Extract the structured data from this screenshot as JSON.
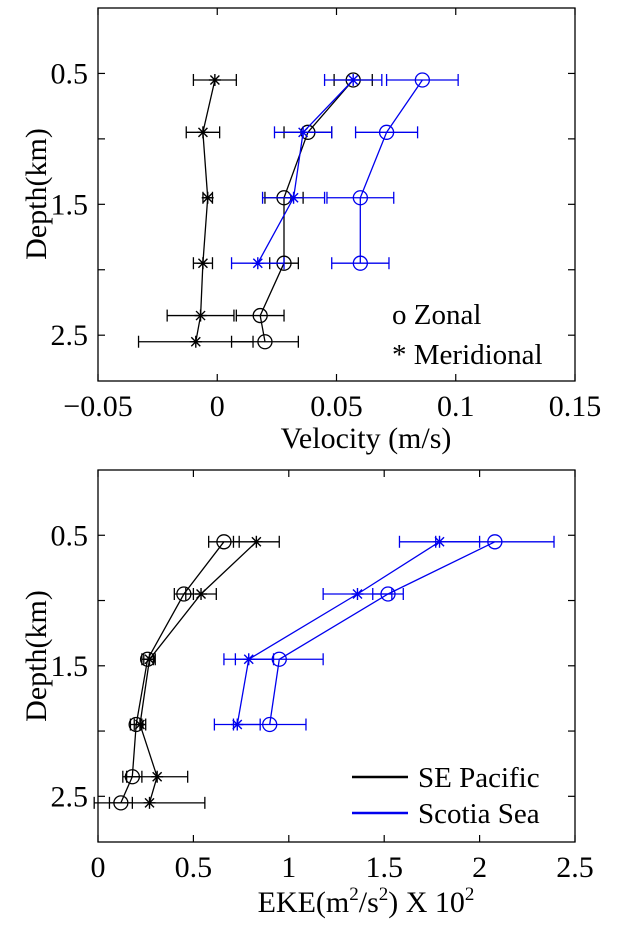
{
  "colors": {
    "black_series": "#000000",
    "blue_series": "#0000ee",
    "axes": "#000000"
  },
  "chart_data": [
    {
      "type": "line",
      "xlabel": "Velocity (m/s)",
      "ylabel": "Depth(km)",
      "xlim": [
        -0.05,
        0.15
      ],
      "ylim": [
        0.0,
        2.85
      ],
      "y_inverted": true,
      "xticks": [
        -0.05,
        0,
        0.05,
        0.1,
        0.15
      ],
      "xtick_labels": [
        "−0.05",
        "0",
        "0.05",
        "0.1",
        "0.15"
      ],
      "yticks": [
        0.5,
        1.0,
        1.5,
        2.0,
        2.5
      ],
      "ytick_labels": [
        "0.5",
        "",
        "1.5",
        "",
        "2.5"
      ],
      "legend": {
        "placement": "bottom-right",
        "entries": [
          "o Zonal",
          "* Meridional"
        ]
      },
      "series": [
        {
          "region": "SE Pacific",
          "component": "Zonal",
          "marker": "circle",
          "color": "#000000",
          "depth": [
            0.55,
            0.95,
            1.45,
            1.95,
            2.35,
            2.55
          ],
          "values": [
            0.057,
            0.038,
            0.028,
            0.028,
            0.018,
            0.02
          ],
          "err": [
            0.008,
            0.01,
            0.008,
            0.006,
            0.01,
            0.014
          ]
        },
        {
          "region": "SE Pacific",
          "component": "Meridional",
          "marker": "star",
          "color": "#000000",
          "depth": [
            0.55,
            0.95,
            1.45,
            1.95,
            2.35,
            2.55
          ],
          "values": [
            -0.001,
            -0.006,
            -0.004,
            -0.006,
            -0.007,
            -0.009
          ],
          "err": [
            0.009,
            0.007,
            0.002,
            0.004,
            0.014,
            0.024
          ]
        },
        {
          "region": "Scotia Sea",
          "component": "Zonal",
          "marker": "circle",
          "color": "#0000ee",
          "depth": [
            0.55,
            0.95,
            1.45,
            1.95
          ],
          "values": [
            0.086,
            0.071,
            0.06,
            0.06
          ],
          "err": [
            0.015,
            0.013,
            0.014,
            0.012
          ]
        },
        {
          "region": "Scotia Sea",
          "component": "Meridional",
          "marker": "star",
          "color": "#0000ee",
          "depth": [
            0.55,
            0.95,
            1.45,
            1.95
          ],
          "values": [
            0.057,
            0.036,
            0.032,
            0.017
          ],
          "err": [
            0.012,
            0.012,
            0.013,
            0.011
          ]
        }
      ]
    },
    {
      "type": "line",
      "xlabel_main": "EKE(m",
      "xlabel_sup1": "2",
      "xlabel_mid": "/s",
      "xlabel_sup2": "2",
      "xlabel_rest": ") X 10",
      "xlabel_sup3": "2",
      "ylabel": "Depth(km)",
      "xlim": [
        0,
        2.5
      ],
      "ylim": [
        0.0,
        2.85
      ],
      "y_inverted": true,
      "xticks": [
        0,
        0.5,
        1.0,
        1.5,
        2.0,
        2.5
      ],
      "xtick_labels": [
        "0",
        "0.5",
        "1",
        "1.5",
        "2",
        "2.5"
      ],
      "yticks": [
        0.5,
        1.0,
        1.5,
        2.0,
        2.5
      ],
      "ytick_labels": [
        "0.5",
        "",
        "1.5",
        "",
        "2.5"
      ],
      "legend": {
        "placement": "bottom-right",
        "entries": [
          "SE Pacific",
          "Scotia Sea"
        ],
        "colors": [
          "#000000",
          "#0000ee"
        ]
      },
      "series": [
        {
          "region": "SE Pacific",
          "component": "Zonal",
          "marker": "circle",
          "color": "#000000",
          "depth": [
            0.55,
            0.95,
            1.45,
            1.95,
            2.35,
            2.55
          ],
          "values": [
            0.66,
            0.45,
            0.26,
            0.2,
            0.18,
            0.12
          ],
          "err": [
            0.08,
            0.05,
            0.03,
            0.03,
            0.05,
            0.06
          ]
        },
        {
          "region": "SE Pacific",
          "component": "Meridional",
          "marker": "star",
          "color": "#000000",
          "depth": [
            0.55,
            0.95,
            1.45,
            1.95,
            2.35,
            2.55
          ],
          "values": [
            0.83,
            0.54,
            0.27,
            0.22,
            0.31,
            0.27
          ],
          "err": [
            0.12,
            0.08,
            0.03,
            0.03,
            0.16,
            0.29
          ]
        },
        {
          "region": "Scotia Sea",
          "component": "Zonal",
          "marker": "circle",
          "color": "#0000ee",
          "depth": [
            0.55,
            0.95,
            1.45,
            1.95
          ],
          "values": [
            2.08,
            1.52,
            0.95,
            0.9
          ],
          "err": [
            0.31,
            0.08,
            0.23,
            0.19
          ]
        },
        {
          "region": "Scotia Sea",
          "component": "Meridional",
          "marker": "star",
          "color": "#0000ee",
          "depth": [
            0.55,
            0.95,
            1.45,
            1.95
          ],
          "values": [
            1.79,
            1.36,
            0.79,
            0.73
          ],
          "err": [
            0.21,
            0.18,
            0.13,
            0.12
          ]
        }
      ]
    }
  ]
}
